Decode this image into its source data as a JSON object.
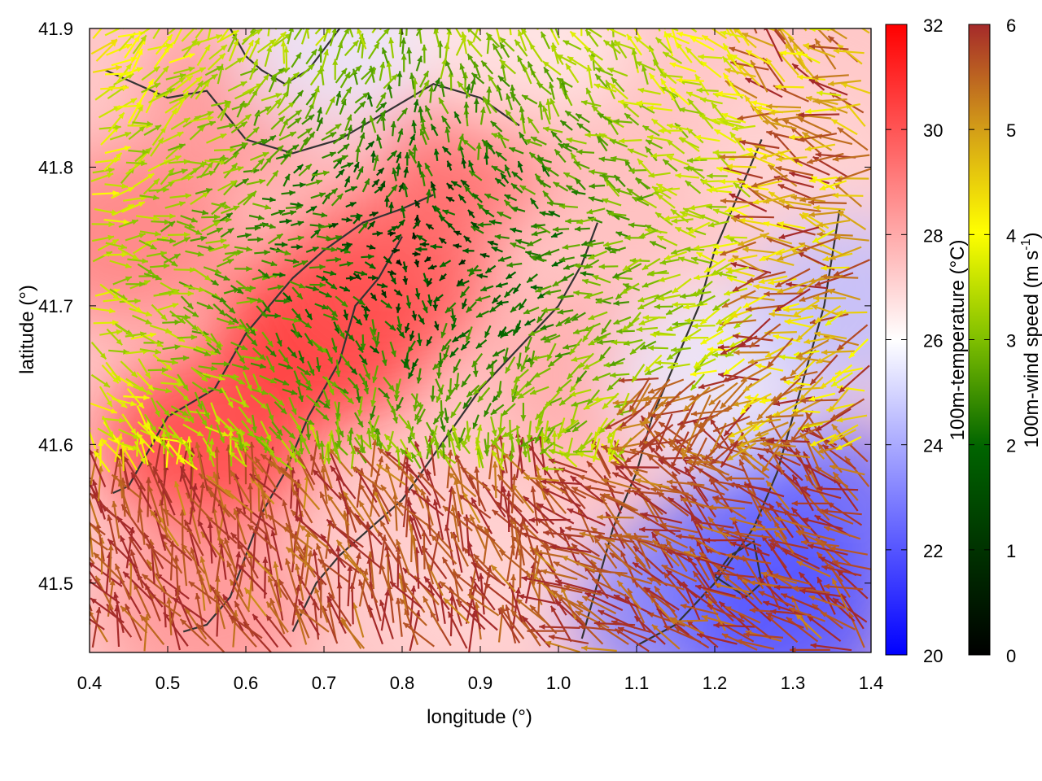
{
  "chart_data": {
    "type": "heatmap",
    "subtype": "vector field over heatmap with contours",
    "title": "",
    "xlabel": "longitude (°)",
    "ylabel": "latitude (°)",
    "xlim": [
      0.4,
      1.4
    ],
    "ylim": [
      41.45,
      41.9
    ],
    "xticks": [
      "0.4",
      "0.5",
      "0.6",
      "0.7",
      "0.8",
      "0.9",
      "1.0",
      "1.1",
      "1.2",
      "1.3",
      "1.4"
    ],
    "yticks": [
      "41.5",
      "41.6",
      "41.7",
      "41.8",
      "41.9"
    ],
    "ytick_values": [
      41.5,
      41.6,
      41.7,
      41.8,
      41.9
    ],
    "xtick_values": [
      0.4,
      0.5,
      0.6,
      0.7,
      0.8,
      0.9,
      1.0,
      1.1,
      1.2,
      1.3,
      1.4
    ],
    "grid": false,
    "heatmap": {
      "quantity_label": "100m-temperature (°C)",
      "range": [
        20,
        32
      ],
      "tick_labels": [
        "20",
        "22",
        "24",
        "26",
        "28",
        "30",
        "32"
      ],
      "tick_values": [
        20,
        22,
        24,
        26,
        28,
        30,
        32
      ],
      "colormap": [
        "#0000ff",
        "#ffffff",
        "#ff0000"
      ],
      "regions": [
        {
          "lon": 0.7,
          "lat": 41.68,
          "temperature": 31
        },
        {
          "lon": 0.55,
          "lat": 41.6,
          "temperature": 30.5
        },
        {
          "lon": 0.78,
          "lat": 41.72,
          "temperature": 30
        },
        {
          "lon": 0.9,
          "lat": 41.82,
          "temperature": 29.5
        },
        {
          "lon": 0.45,
          "lat": 41.75,
          "temperature": 29
        },
        {
          "lon": 0.6,
          "lat": 41.85,
          "temperature": 28.5
        },
        {
          "lon": 1.05,
          "lat": 41.65,
          "temperature": 28
        },
        {
          "lon": 1.1,
          "lat": 41.8,
          "temperature": 27.5
        },
        {
          "lon": 1.3,
          "lat": 41.8,
          "temperature": 27
        },
        {
          "lon": 0.55,
          "lat": 41.48,
          "temperature": 28.5
        },
        {
          "lon": 0.9,
          "lat": 41.5,
          "temperature": 27
        },
        {
          "lon": 1.2,
          "lat": 41.65,
          "temperature": 25.5
        },
        {
          "lon": 1.25,
          "lat": 41.52,
          "temperature": 22
        },
        {
          "lon": 1.35,
          "lat": 41.55,
          "temperature": 22.5
        },
        {
          "lon": 1.15,
          "lat": 41.48,
          "temperature": 23
        },
        {
          "lon": 1.38,
          "lat": 41.7,
          "temperature": 24.5
        },
        {
          "lon": 0.72,
          "lat": 41.89,
          "temperature": 25.5
        },
        {
          "lon": 0.95,
          "lat": 41.89,
          "temperature": 26.5
        },
        {
          "lon": 1.3,
          "lat": 41.47,
          "temperature": 22
        }
      ]
    },
    "vectors": {
      "quantity_label": "100m-wind speed (m s⁻¹)",
      "label_main": "100m-wind speed (m s",
      "label_sup": "-1",
      "label_end": ")",
      "range": [
        0,
        6
      ],
      "tick_labels": [
        "0",
        "1",
        "2",
        "3",
        "4",
        "5",
        "6"
      ],
      "tick_values": [
        0,
        1,
        2,
        3,
        4,
        5,
        6
      ],
      "colormap": [
        "#000000",
        "#006400",
        "#7fbf00",
        "#ffff00",
        "#d4a017",
        "#a52a2a"
      ],
      "flow_centers": [
        {
          "lon": 0.85,
          "lat": 41.7,
          "speed": 0.5,
          "note": "calm"
        },
        {
          "lon": 1.0,
          "lat": 41.8,
          "speed": 0.8,
          "note": "calm"
        }
      ]
    },
    "contours": [
      {
        "lon": [
          0.43,
          0.45,
          0.5,
          0.56,
          0.6,
          0.63,
          0.66,
          0.7,
          0.75,
          0.8,
          0.84
        ],
        "lat": [
          41.565,
          41.57,
          41.62,
          41.64,
          41.68,
          41.7,
          41.72,
          41.74,
          41.76,
          41.77,
          41.78
        ]
      },
      {
        "lon": [
          0.52,
          0.55,
          0.58,
          0.6,
          0.62,
          0.65,
          0.68,
          0.72,
          0.74,
          0.77,
          0.8
        ],
        "lat": [
          41.465,
          41.47,
          41.49,
          41.52,
          41.55,
          41.58,
          41.62,
          41.66,
          41.7,
          41.72,
          41.75
        ]
      },
      {
        "lon": [
          0.66,
          0.69,
          0.72,
          0.76,
          0.8,
          0.85,
          0.9,
          0.95,
          1.0,
          1.03,
          1.05
        ],
        "lat": [
          41.465,
          41.5,
          41.52,
          41.54,
          41.56,
          41.6,
          41.64,
          41.67,
          41.7,
          41.73,
          41.76
        ]
      },
      {
        "lon": [
          1.03,
          1.05,
          1.07,
          1.1,
          1.12,
          1.15,
          1.18,
          1.2,
          1.23,
          1.26
        ],
        "lat": [
          41.46,
          41.5,
          41.54,
          41.58,
          41.62,
          41.66,
          41.7,
          41.74,
          41.78,
          41.82
        ]
      },
      {
        "lon": [
          1.1,
          1.15,
          1.2,
          1.25,
          1.28,
          1.3,
          1.32,
          1.34,
          1.36
        ],
        "lat": [
          41.455,
          41.47,
          41.5,
          41.54,
          41.58,
          41.62,
          41.66,
          41.7,
          41.77
        ]
      },
      {
        "lon": [
          1.2,
          1.22,
          1.25,
          1.26,
          1.24,
          1.2
        ],
        "lat": [
          41.505,
          41.52,
          41.53,
          41.5,
          41.49,
          41.505
        ]
      },
      {
        "lon": [
          0.42,
          0.46,
          0.5,
          0.55,
          0.6,
          0.66,
          0.72,
          0.78,
          0.84,
          0.9,
          0.95
        ],
        "lat": [
          41.87,
          41.86,
          41.85,
          41.855,
          41.82,
          41.81,
          41.82,
          41.84,
          41.86,
          41.85,
          41.83
        ]
      },
      {
        "lon": [
          0.58,
          0.6,
          0.62,
          0.65,
          0.68,
          0.7,
          0.72
        ],
        "lat": [
          41.9,
          41.88,
          41.87,
          41.86,
          41.87,
          41.885,
          41.9
        ]
      }
    ]
  },
  "seed": 20240611
}
